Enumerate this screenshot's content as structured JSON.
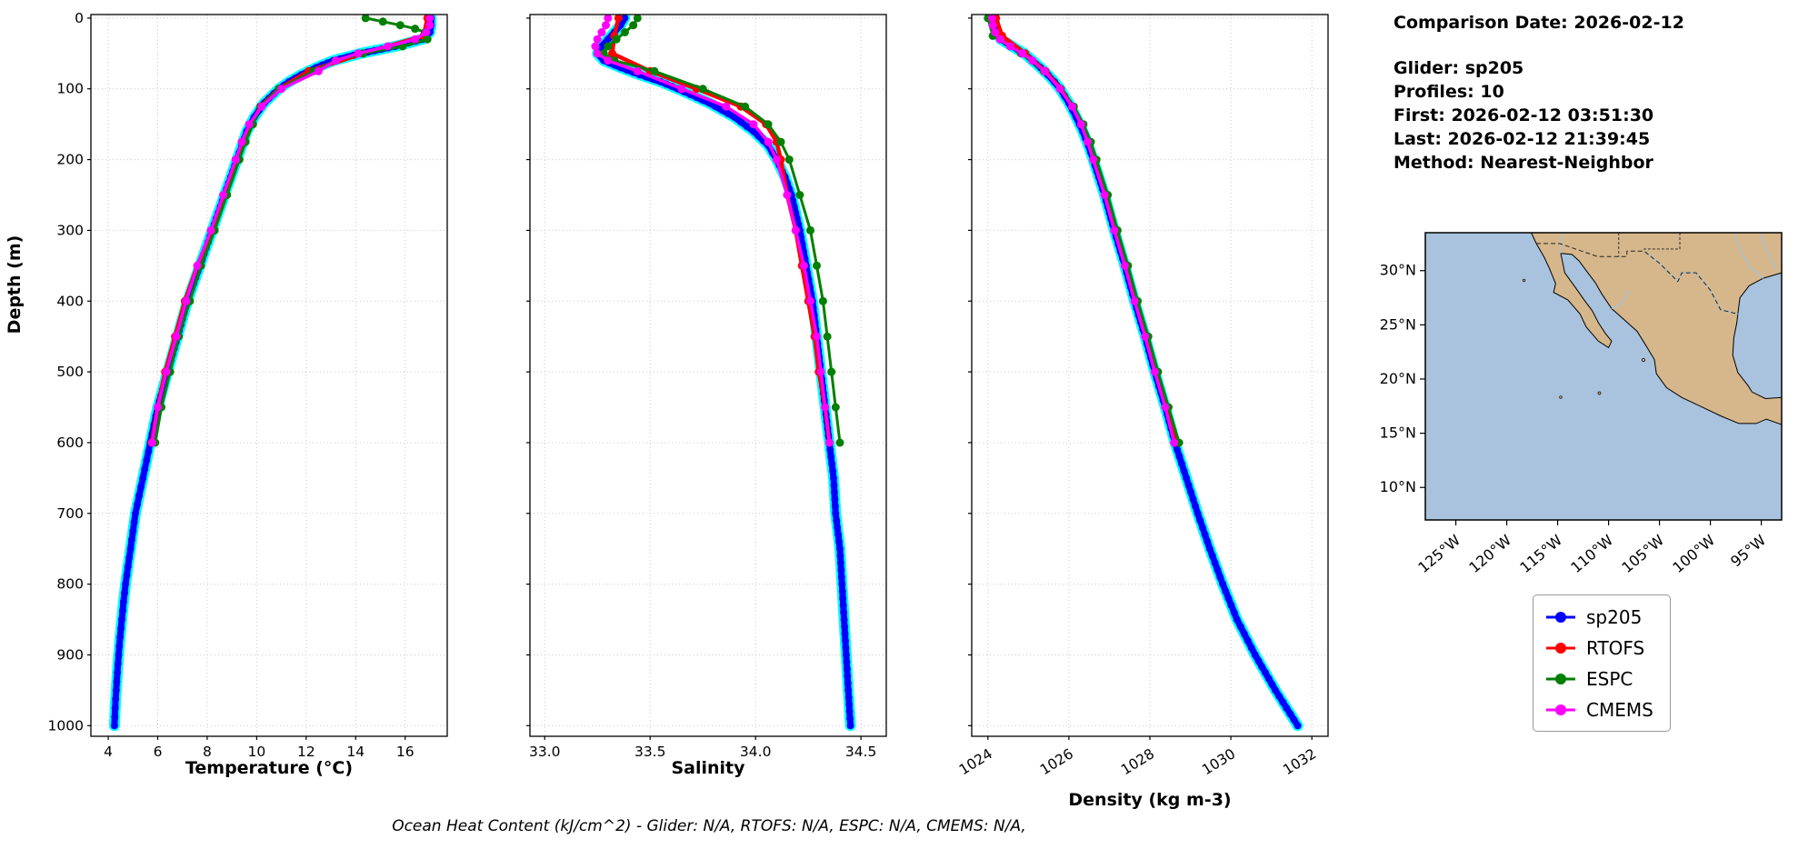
{
  "info": {
    "comparison_date": "Comparison Date: 2026-02-12",
    "glider": "Glider: sp205",
    "profiles": "Profiles: 10",
    "first": "First: 2026-02-12 03:51:30",
    "last": "Last: 2026-02-12 21:39:45",
    "method": "Method: Nearest-Neighbor"
  },
  "footer": "Ocean Heat Content (kJ/cm^2) - Glider: N/A,  RTOFS: N/A,  ESPC: N/A,  CMEMS: N/A,",
  "legend": [
    {
      "label": "sp205",
      "color": "#0000ff"
    },
    {
      "label": "RTOFS",
      "color": "#ff0000"
    },
    {
      "label": "ESPC",
      "color": "#008000"
    },
    {
      "label": "CMEMS",
      "color": "#ff00ff"
    }
  ],
  "depth_axis": {
    "label": "Depth (m)",
    "range": [
      -5,
      1015
    ],
    "ticks": [
      0,
      100,
      200,
      300,
      400,
      500,
      600,
      700,
      800,
      900,
      1000
    ]
  },
  "map": {
    "land_color": "#d6b78b",
    "ocean_color": "#a9c3de",
    "river_color": "#9dc3e6",
    "lat_labels": [
      "30°N",
      "25°N",
      "20°N",
      "15°N",
      "10°N"
    ],
    "lat_values": [
      30,
      25,
      20,
      15,
      10
    ],
    "lon_labels": [
      "125°W",
      "120°W",
      "115°W",
      "110°W",
      "105°W",
      "100°W",
      "95°W"
    ],
    "lon_values": [
      -125,
      -120,
      -115,
      -110,
      -105,
      -100,
      -95
    ]
  },
  "chart_data": [
    {
      "type": "line",
      "xlabel": "Temperature (°C)",
      "x_range": [
        3.3,
        17.7
      ],
      "xticks": [
        4,
        6,
        8,
        10,
        12,
        14,
        16
      ],
      "xtick_labels": [
        "4",
        "6",
        "8",
        "10",
        "12",
        "14",
        "16"
      ],
      "ylabel": "Depth (m)",
      "grid": true,
      "series": [
        {
          "name": "sp205",
          "color": "#0000ff",
          "halo": "#00ffff",
          "line_width": 7,
          "marker_r": 4,
          "dense": true,
          "depths": [
            0,
            10,
            20,
            30,
            40,
            50,
            60,
            70,
            80,
            90,
            100,
            120,
            140,
            160,
            180,
            200,
            225,
            250,
            275,
            300,
            325,
            350,
            375,
            400,
            425,
            450,
            475,
            500,
            525,
            550,
            575,
            600,
            625,
            650,
            675,
            700,
            725,
            750,
            775,
            800,
            825,
            850,
            875,
            900,
            925,
            950,
            975,
            1000
          ],
          "values": [
            17.05,
            17.05,
            17.0,
            16.7,
            15.6,
            14.2,
            13.1,
            12.4,
            11.8,
            11.3,
            10.9,
            10.3,
            9.9,
            9.6,
            9.4,
            9.2,
            8.95,
            8.7,
            8.45,
            8.2,
            7.95,
            7.7,
            7.45,
            7.2,
            7.0,
            6.8,
            6.6,
            6.4,
            6.2,
            6.0,
            5.85,
            5.7,
            5.55,
            5.4,
            5.25,
            5.1,
            5.0,
            4.9,
            4.8,
            4.7,
            4.62,
            4.55,
            4.48,
            4.42,
            4.37,
            4.32,
            4.28,
            4.25
          ]
        },
        {
          "name": "RTOFS",
          "color": "#ff0000",
          "line_width": 4.5,
          "marker_r": 4.5,
          "depths": [
            0,
            25,
            50,
            75,
            100,
            125,
            150,
            175,
            200,
            250,
            300,
            350,
            400,
            450,
            500,
            550,
            600
          ],
          "values": [
            16.9,
            16.75,
            14.3,
            12.1,
            10.9,
            10.15,
            9.8,
            9.5,
            9.2,
            8.7,
            8.2,
            7.6,
            7.1,
            6.7,
            6.3,
            6.0,
            5.75
          ]
        },
        {
          "name": "ESPC",
          "color": "#008000",
          "line_width": 3,
          "marker_r": 4.5,
          "depths": [
            0,
            5,
            10,
            15,
            20,
            30,
            40,
            50,
            60,
            75,
            100,
            125,
            150,
            175,
            200,
            250,
            300,
            350,
            400,
            450,
            500,
            550,
            600
          ],
          "values": [
            14.4,
            15.1,
            15.8,
            16.4,
            16.8,
            16.9,
            15.9,
            14.3,
            13.2,
            12.3,
            10.9,
            10.15,
            9.85,
            9.55,
            9.3,
            8.8,
            8.3,
            7.75,
            7.3,
            6.85,
            6.5,
            6.15,
            5.9
          ]
        },
        {
          "name": "CMEMS",
          "color": "#ff00ff",
          "line_width": 3.5,
          "marker_r": 4.5,
          "depths": [
            0,
            10,
            20,
            30,
            40,
            50,
            60,
            75,
            100,
            125,
            150,
            175,
            200,
            250,
            300,
            350,
            400,
            450,
            500,
            550,
            600
          ],
          "values": [
            17.0,
            17.0,
            16.85,
            16.4,
            15.3,
            14.1,
            13.2,
            12.5,
            11.0,
            10.2,
            9.7,
            9.4,
            9.15,
            8.65,
            8.15,
            7.6,
            7.15,
            6.75,
            6.35,
            6.0,
            5.78
          ]
        }
      ]
    },
    {
      "type": "line",
      "xlabel": "Salinity",
      "x_range": [
        32.93,
        34.62
      ],
      "xticks": [
        33.0,
        33.5,
        34.0,
        34.5
      ],
      "xtick_labels": [
        "33.0",
        "33.5",
        "34.0",
        "34.5"
      ],
      "ylabel": "Depth (m)",
      "grid": true,
      "series": [
        {
          "name": "sp205",
          "color": "#0000ff",
          "halo": "#00ffff",
          "line_width": 7,
          "marker_r": 4,
          "dense": true,
          "depths": [
            0,
            10,
            20,
            30,
            40,
            50,
            60,
            70,
            80,
            90,
            100,
            120,
            140,
            160,
            180,
            200,
            225,
            250,
            275,
            300,
            350,
            400,
            450,
            500,
            550,
            600,
            650,
            700,
            750,
            800,
            850,
            900,
            950,
            1000
          ],
          "values": [
            33.38,
            33.36,
            33.33,
            33.3,
            33.27,
            33.25,
            33.28,
            33.36,
            33.45,
            33.55,
            33.63,
            33.78,
            33.9,
            33.99,
            34.06,
            34.1,
            34.14,
            34.17,
            34.19,
            34.21,
            34.24,
            34.27,
            34.29,
            34.31,
            34.33,
            34.35,
            34.37,
            34.38,
            34.4,
            34.41,
            34.42,
            34.43,
            34.44,
            34.45
          ]
        },
        {
          "name": "RTOFS",
          "color": "#ff0000",
          "line_width": 4.5,
          "marker_r": 4.5,
          "depths": [
            0,
            25,
            50,
            75,
            100,
            125,
            150,
            175,
            200,
            250,
            300,
            350,
            400,
            450,
            500,
            550,
            600
          ],
          "values": [
            33.35,
            33.33,
            33.32,
            33.5,
            33.72,
            33.93,
            34.05,
            34.1,
            34.12,
            34.15,
            34.19,
            34.22,
            34.25,
            34.28,
            34.3,
            34.33,
            34.35
          ]
        },
        {
          "name": "ESPC",
          "color": "#008000",
          "line_width": 3,
          "marker_r": 4.5,
          "depths": [
            0,
            10,
            20,
            30,
            40,
            50,
            60,
            75,
            100,
            125,
            150,
            175,
            200,
            250,
            300,
            350,
            400,
            450,
            500,
            550,
            600
          ],
          "values": [
            33.44,
            33.42,
            33.38,
            33.34,
            33.3,
            33.28,
            33.33,
            33.52,
            33.75,
            33.95,
            34.06,
            34.12,
            34.16,
            34.21,
            34.26,
            34.29,
            34.32,
            34.34,
            34.36,
            34.38,
            34.4
          ]
        },
        {
          "name": "CMEMS",
          "color": "#ff00ff",
          "line_width": 3.5,
          "marker_r": 4.5,
          "depths": [
            0,
            10,
            20,
            30,
            40,
            50,
            60,
            75,
            100,
            125,
            150,
            175,
            200,
            250,
            300,
            350,
            400,
            450,
            500,
            550,
            600
          ],
          "values": [
            33.3,
            33.29,
            33.27,
            33.25,
            33.24,
            33.25,
            33.3,
            33.44,
            33.65,
            33.86,
            33.99,
            34.06,
            34.1,
            34.15,
            34.19,
            34.23,
            34.26,
            34.29,
            34.31,
            34.33,
            34.35
          ]
        }
      ]
    },
    {
      "type": "line",
      "xlabel": "Density (kg m-3)",
      "x_range": [
        1023.6,
        1032.4
      ],
      "xticks": [
        1024,
        1026,
        1028,
        1030,
        1032
      ],
      "xtick_labels": [
        "1024",
        "1026",
        "1028",
        "1030",
        "1032"
      ],
      "ylabel": "Depth (m)",
      "grid": true,
      "rotate_xticks": true,
      "series": [
        {
          "name": "sp205",
          "color": "#0000ff",
          "halo": "#00ffff",
          "line_width": 7,
          "marker_r": 4,
          "dense": true,
          "depths": [
            0,
            10,
            20,
            30,
            40,
            50,
            60,
            70,
            80,
            90,
            100,
            120,
            140,
            160,
            180,
            200,
            225,
            250,
            275,
            300,
            350,
            400,
            450,
            500,
            550,
            600,
            650,
            700,
            750,
            800,
            850,
            900,
            950,
            1000
          ],
          "values": [
            1024.15,
            1024.17,
            1024.22,
            1024.32,
            1024.6,
            1024.9,
            1025.1,
            1025.3,
            1025.48,
            1025.64,
            1025.78,
            1026.0,
            1026.18,
            1026.34,
            1026.48,
            1026.6,
            1026.74,
            1026.88,
            1027.0,
            1027.12,
            1027.38,
            1027.62,
            1027.88,
            1028.12,
            1028.38,
            1028.62,
            1028.9,
            1029.18,
            1029.48,
            1029.8,
            1030.15,
            1030.6,
            1031.1,
            1031.65
          ]
        },
        {
          "name": "RTOFS",
          "color": "#ff0000",
          "line_width": 4.5,
          "marker_r": 4.5,
          "depths": [
            0,
            25,
            50,
            75,
            100,
            125,
            150,
            175,
            200,
            250,
            300,
            350,
            400,
            450,
            500,
            550,
            600
          ],
          "values": [
            1024.2,
            1024.35,
            1024.92,
            1025.42,
            1025.8,
            1026.1,
            1026.32,
            1026.5,
            1026.62,
            1026.9,
            1027.14,
            1027.4,
            1027.64,
            1027.9,
            1028.14,
            1028.4,
            1028.64
          ]
        },
        {
          "name": "ESPC",
          "color": "#008000",
          "line_width": 3,
          "marker_r": 4.5,
          "depths": [
            0,
            25,
            50,
            75,
            100,
            125,
            150,
            175,
            200,
            250,
            300,
            350,
            400,
            450,
            500,
            550,
            600
          ],
          "values": [
            1024.0,
            1024.12,
            1024.82,
            1025.38,
            1025.8,
            1026.12,
            1026.36,
            1026.54,
            1026.68,
            1026.96,
            1027.2,
            1027.46,
            1027.7,
            1027.96,
            1028.2,
            1028.46,
            1028.72
          ]
        },
        {
          "name": "CMEMS",
          "color": "#ff00ff",
          "line_width": 3.5,
          "marker_r": 4.5,
          "depths": [
            0,
            10,
            20,
            30,
            40,
            50,
            60,
            75,
            100,
            125,
            150,
            175,
            200,
            250,
            300,
            350,
            400,
            450,
            500,
            550,
            600
          ],
          "values": [
            1024.1,
            1024.12,
            1024.18,
            1024.3,
            1024.55,
            1024.85,
            1025.1,
            1025.4,
            1025.78,
            1026.08,
            1026.3,
            1026.46,
            1026.6,
            1026.88,
            1027.12,
            1027.38,
            1027.62,
            1027.88,
            1028.12,
            1028.38,
            1028.6
          ]
        }
      ]
    }
  ]
}
